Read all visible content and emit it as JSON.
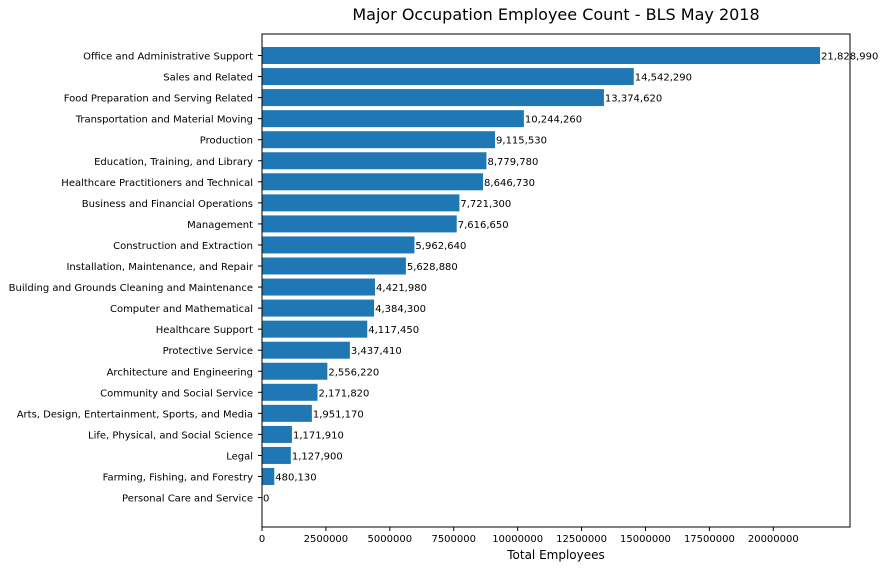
{
  "chart_data": {
    "type": "bar",
    "orientation": "horizontal",
    "title": "Major Occupation Employee Count - BLS May 2018",
    "xlabel": "Total Employees",
    "ylabel": "",
    "xlim": [
      0,
      23000000
    ],
    "x_ticks": [
      0,
      2500000,
      5000000,
      7500000,
      10000000,
      12500000,
      15000000,
      17500000,
      20000000
    ],
    "x_tick_labels": [
      "0",
      "2500000",
      "5000000",
      "7500000",
      "10000000",
      "12500000",
      "15000000",
      "17500000",
      "20000000"
    ],
    "grid": false,
    "bar_color": "#1f77b4",
    "categories": [
      "Office and Administrative Support",
      "Sales and Related",
      "Food Preparation and Serving Related",
      "Transportation and Material Moving",
      "Production",
      "Education, Training, and Library",
      "Healthcare Practitioners and Technical",
      "Business and Financial Operations",
      "Management",
      "Construction and Extraction",
      "Installation, Maintenance, and Repair",
      "Building and Grounds Cleaning and Maintenance",
      "Computer and Mathematical",
      "Healthcare Support",
      "Protective Service",
      "Architecture and Engineering",
      "Community and Social Service",
      "Arts, Design, Entertainment, Sports, and Media",
      "Life, Physical, and Social Science",
      "Legal",
      "Farming, Fishing, and Forestry",
      "Personal Care and Service"
    ],
    "values": [
      21828990,
      14542290,
      13374620,
      10244260,
      9115530,
      8779780,
      8646730,
      7721300,
      7616650,
      5962640,
      5628880,
      4421980,
      4384300,
      4117450,
      3437410,
      2556220,
      2171820,
      1951170,
      1171910,
      1127900,
      480130,
      0
    ],
    "value_labels": [
      "21,828,990",
      "14,542,290",
      "13,374,620",
      "10,244,260",
      "9,115,530",
      "8,779,780",
      "8,646,730",
      "7,721,300",
      "7,616,650",
      "5,962,640",
      "5,628,880",
      "4,421,980",
      "4,384,300",
      "4,117,450",
      "3,437,410",
      "2,556,220",
      "2,171,820",
      "1,951,170",
      "1,171,910",
      "1,127,900",
      "480,130",
      "0"
    ]
  }
}
